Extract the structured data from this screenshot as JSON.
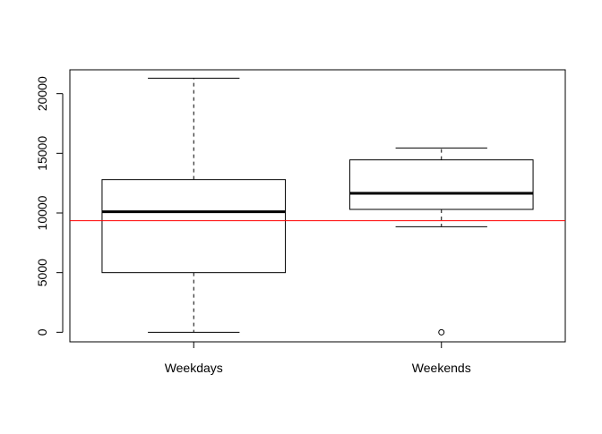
{
  "chart_data": {
    "type": "boxplot",
    "title": "",
    "xlabel": "",
    "ylabel": "",
    "categories": [
      "Weekdays",
      "Weekends"
    ],
    "boxes": [
      {
        "category": "Weekdays",
        "whisker_low": 0,
        "q1": 5000,
        "median": 10100,
        "q3": 12800,
        "whisker_high": 21300,
        "outliers": []
      },
      {
        "category": "Weekends",
        "whisker_low": 8850,
        "q1": 10300,
        "median": 11650,
        "q3": 14450,
        "whisker_high": 15450,
        "outliers": [
          0
        ]
      }
    ],
    "reference_line": {
      "y": 9350,
      "color": "#ff0000"
    },
    "ylim": [
      -800,
      22000
    ],
    "yticks": [
      0,
      5000,
      10000,
      15000,
      20000
    ],
    "ytick_labels": [
      "0",
      "5000",
      "10000",
      "15000",
      "20000"
    ],
    "grid": false,
    "legend": "none",
    "colors": {
      "box": "#000000",
      "reference": "#ff0000",
      "background": "#ffffff"
    }
  }
}
